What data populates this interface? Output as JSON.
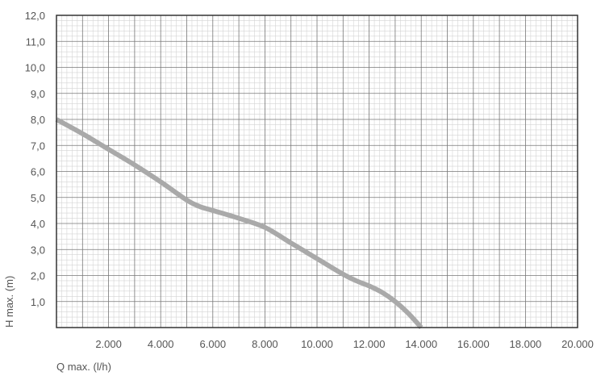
{
  "chart_data": {
    "type": "line",
    "title": "",
    "xlabel": "Q max. (l/h)",
    "ylabel": "H max. (m)",
    "xlim": [
      0,
      20000
    ],
    "ylim": [
      0,
      12
    ],
    "x_ticks": [
      2000,
      4000,
      6000,
      8000,
      10000,
      12000,
      14000,
      16000,
      18000,
      20000
    ],
    "x_tick_labels": [
      "2.000",
      "4.000",
      "6.000",
      "8.000",
      "10.000",
      "12.000",
      "14.000",
      "16.000",
      "18.000",
      "20.000"
    ],
    "y_ticks": [
      1,
      2,
      3,
      4,
      5,
      6,
      7,
      8,
      9,
      10,
      11,
      12
    ],
    "y_tick_labels": [
      "1,0",
      "2,0",
      "3,0",
      "4,0",
      "5,0",
      "6,0",
      "7,0",
      "8,0",
      "9,0",
      "10,0",
      "11,0",
      "12,0"
    ],
    "grid": true,
    "series": [
      {
        "color": "#a9a9a9",
        "x": [
          0,
          1000,
          2000,
          3000,
          4000,
          5000,
          5500,
          6000,
          7000,
          8000,
          9000,
          10000,
          11000,
          11500,
          12000,
          12500,
          13000,
          13500,
          14000
        ],
        "y": [
          8.0,
          7.45,
          6.85,
          6.25,
          5.6,
          4.9,
          4.65,
          4.5,
          4.2,
          3.85,
          3.25,
          2.65,
          2.05,
          1.8,
          1.6,
          1.35,
          1.0,
          0.55,
          0.0
        ]
      }
    ]
  }
}
